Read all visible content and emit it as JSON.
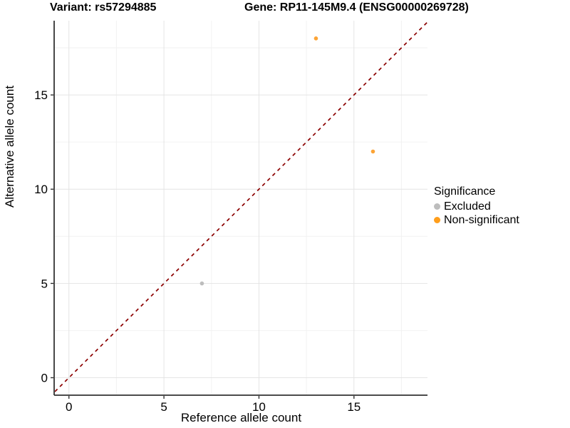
{
  "header": {
    "title_left": "Variant: rs57294885",
    "title_right": "Gene: RP11-145M9.4 (ENSG00000269728)"
  },
  "chart_data": {
    "type": "scatter",
    "xlabel": "Reference allele count",
    "ylabel": "Alternative allele count",
    "xlim": [
      -0.74,
      18.87
    ],
    "ylim": [
      -0.89,
      18.94
    ],
    "x_ticks": [
      0,
      5,
      10,
      15
    ],
    "y_ticks": [
      0,
      5,
      10,
      15
    ],
    "x_minor_ticks": [
      2.5,
      7.5,
      12.5,
      17.5
    ],
    "y_minor_ticks": [
      2.5,
      7.5,
      12.5,
      17.5
    ],
    "grid": "major+minor",
    "identity_line": {
      "slope": 1,
      "intercept": 0,
      "style": "dashed",
      "color": "#8B0000"
    },
    "series": [
      {
        "name": "Excluded",
        "color": "#BDBDBD",
        "points": [
          {
            "x": 7,
            "y": 5
          }
        ]
      },
      {
        "name": "Non-significant",
        "color": "#FCA436",
        "points": [
          {
            "x": 13,
            "y": 18
          },
          {
            "x": 16,
            "y": 12
          }
        ]
      }
    ],
    "legend": {
      "title": "Significance",
      "position": "right",
      "entries": [
        {
          "label": "Excluded",
          "color": "#BDBDBD"
        },
        {
          "label": "Non-significant",
          "color": "#FF9E1B"
        }
      ]
    },
    "colors": {
      "grid_major": "#E4E4E4",
      "grid_minor": "#F2F2F2",
      "axis_line": "#333333",
      "tick_mark": "#333333",
      "text": "#000000"
    }
  }
}
